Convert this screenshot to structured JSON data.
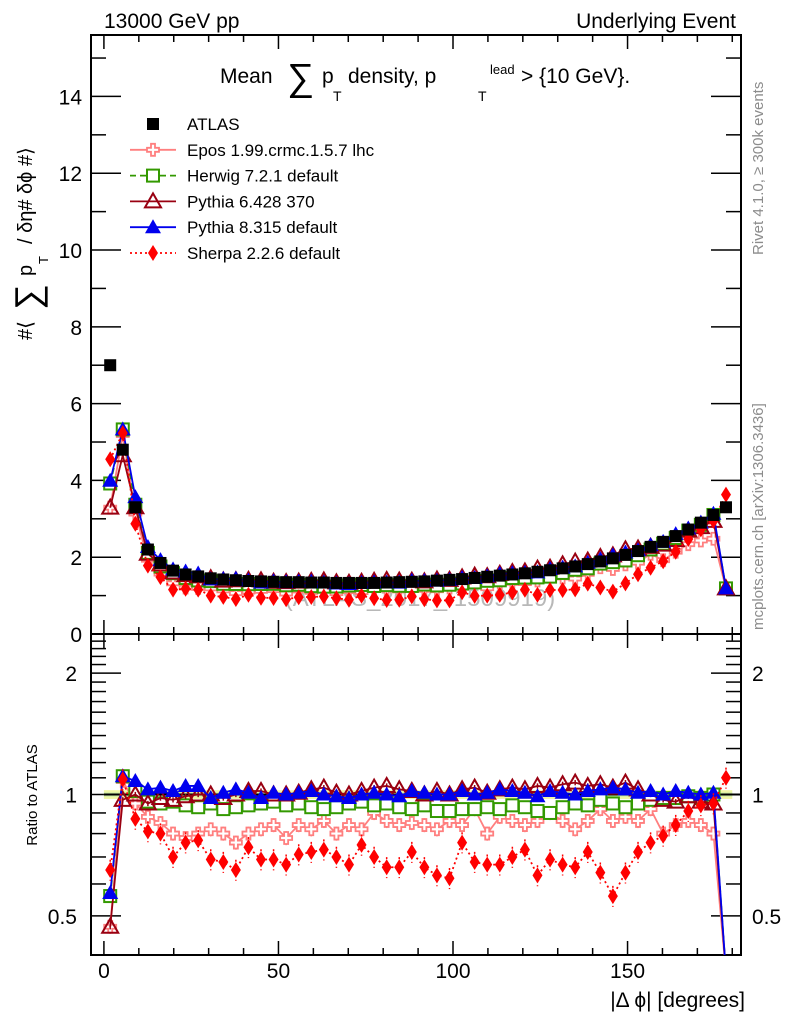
{
  "chart_data": {
    "type": "scatter",
    "header_left": "13000 GeV pp",
    "header_right": "Underlying Event",
    "title": {
      "prefix": "Mean",
      "sum_symbol": "∑",
      "p": "p",
      "sub_T": "T",
      "middle": "density, p",
      "sup_lead": "lead",
      "suffix": "> {10 GeV}."
    },
    "ylabel": {
      "prefix": "#⟨",
      "sum_symbol": "∑",
      "p": "p",
      "sub_T": "T",
      "suffix": "/ δη# δϕ #⟩"
    },
    "ratio_ylabel": "Ratio to ATLAS",
    "xlabel": "|Δ ϕ| [degrees]",
    "side_text_top": "Rivet 4.1.0, ≥ 300k events",
    "side_text_bottom": "mcplots.cern.ch [arXiv:1306.3436]",
    "watermark": "(ATLAS_2017_I1509919)",
    "xlim": [
      -3.7,
      182.5
    ],
    "ylim_main": [
      0,
      15.6
    ],
    "ylim_ratio": [
      0.4,
      2.5
    ],
    "ratio_scale": "log",
    "x_ticks": [
      0,
      50,
      100,
      150
    ],
    "y_ticks_main": [
      0,
      2,
      4,
      6,
      8,
      10,
      12,
      14
    ],
    "y_ticks_ratio": [
      0.5,
      1,
      2
    ],
    "legend_position": "top-left",
    "x": [
      1.8,
      5.4,
      9,
      12.6,
      16.2,
      19.8,
      23.4,
      27,
      30.6,
      34.2,
      37.8,
      41.4,
      45,
      48.6,
      52.2,
      55.8,
      59.4,
      63,
      66.6,
      70.2,
      73.8,
      77.4,
      81,
      84.6,
      88.2,
      91.8,
      95.4,
      99,
      102.6,
      106.2,
      109.8,
      113.4,
      117,
      120.6,
      124.2,
      127.8,
      131.4,
      135,
      138.6,
      142.2,
      145.8,
      149.4,
      153,
      156.6,
      160.2,
      163.8,
      167.4,
      171,
      174.6,
      178.2
    ],
    "reference": {
      "name": "ATLAS",
      "color": "#000000",
      "marker": "square",
      "values": [
        7.0,
        4.8,
        3.3,
        2.2,
        1.85,
        1.65,
        1.55,
        1.5,
        1.45,
        1.42,
        1.4,
        1.38,
        1.37,
        1.36,
        1.35,
        1.35,
        1.34,
        1.34,
        1.33,
        1.33,
        1.33,
        1.33,
        1.34,
        1.35,
        1.36,
        1.37,
        1.39,
        1.41,
        1.43,
        1.46,
        1.49,
        1.52,
        1.55,
        1.58,
        1.62,
        1.66,
        1.71,
        1.76,
        1.82,
        1.89,
        1.97,
        2.06,
        2.16,
        2.27,
        2.4,
        2.55,
        2.72,
        2.9,
        3.1,
        3.3
      ]
    },
    "series": [
      {
        "name": "Epos 1.99.crmc.1.5.7 lhc",
        "color": "#ff7f7f",
        "marker": "cross-box",
        "line": "solid",
        "ratio": [
          0.47,
          1.08,
          0.95,
          0.88,
          0.85,
          0.8,
          0.78,
          0.8,
          0.82,
          0.8,
          0.76,
          0.8,
          0.82,
          0.84,
          0.78,
          0.84,
          0.82,
          0.86,
          0.8,
          0.84,
          0.82,
          0.9,
          0.86,
          0.84,
          0.85,
          0.84,
          0.82,
          0.86,
          0.84,
          0.92,
          0.8,
          0.88,
          0.86,
          0.84,
          0.86,
          0.9,
          0.86,
          0.82,
          0.86,
          0.92,
          0.86,
          0.88,
          0.86,
          0.92,
          0.8,
          0.84,
          0.86,
          0.84,
          0.8,
          0.36
        ]
      },
      {
        "name": "Herwig 7.2.1 default",
        "color": "#339900",
        "marker": "open-square",
        "line": "dashed",
        "ratio": [
          0.56,
          1.11,
          1.02,
          0.96,
          0.95,
          0.96,
          0.94,
          0.93,
          0.95,
          0.92,
          0.93,
          0.94,
          0.95,
          0.96,
          0.94,
          0.95,
          0.93,
          0.92,
          0.93,
          0.95,
          0.96,
          0.94,
          0.95,
          0.93,
          0.92,
          0.94,
          0.91,
          0.91,
          0.92,
          0.92,
          0.93,
          0.92,
          0.94,
          0.93,
          0.91,
          0.9,
          0.93,
          0.95,
          0.94,
          0.97,
          0.95,
          0.93,
          0.95,
          0.97,
          0.98,
          0.98,
          0.99,
          0.98,
          1.0,
          0.36
        ]
      },
      {
        "name": "Pythia 6.428 370",
        "color": "#990011",
        "marker": "open-triangle",
        "line": "solid",
        "ratio": [
          0.47,
          0.97,
          1.0,
          0.95,
          0.98,
          0.97,
          0.99,
          1.0,
          1.0,
          0.98,
          1.0,
          1.02,
          1.02,
          1.0,
          1.0,
          1.01,
          1.03,
          1.04,
          1.01,
          1.0,
          1.02,
          1.04,
          1.05,
          1.03,
          1.02,
          1.0,
          1.02,
          1.0,
          1.03,
          1.04,
          1.01,
          1.03,
          1.04,
          1.03,
          1.05,
          1.04,
          1.06,
          1.07,
          1.05,
          1.06,
          1.04,
          1.07,
          1.03,
          1.0,
          0.97,
          0.96,
          0.99,
          0.96,
          0.95,
          0.36
        ]
      },
      {
        "name": "Pythia 8.315 default",
        "color": "#0000ee",
        "marker": "filled-triangle",
        "line": "solid",
        "ratio": [
          0.57,
          1.11,
          1.08,
          1.03,
          1.04,
          1.02,
          1.05,
          1.05,
          0.98,
          1.01,
          1.03,
          1.01,
          0.98,
          1.01,
          1.0,
          1.01,
          1.02,
          1.0,
          0.99,
          0.98,
          1.0,
          1.01,
          1.0,
          0.99,
          1.02,
          1.01,
          1.0,
          1.0,
          1.02,
          1.0,
          1.01,
          1.03,
          1.02,
          1.01,
          0.99,
          1.02,
          1.01,
          1.0,
          1.02,
          1.03,
          1.04,
          1.03,
          1.01,
          1.02,
          1.0,
          1.02,
          1.01,
          1.0,
          1.01,
          0.36
        ]
      },
      {
        "name": "Sherpa 2.2.6 default",
        "color": "#ff0000",
        "marker": "filled-diamond",
        "line": "dotted",
        "ratio": [
          0.65,
          1.09,
          0.87,
          0.81,
          0.8,
          0.7,
          0.76,
          0.77,
          0.69,
          0.68,
          0.65,
          0.74,
          0.69,
          0.69,
          0.67,
          0.71,
          0.72,
          0.73,
          0.7,
          0.67,
          0.75,
          0.7,
          0.66,
          0.66,
          0.72,
          0.66,
          0.63,
          0.62,
          0.76,
          0.68,
          0.67,
          0.67,
          0.7,
          0.73,
          0.63,
          0.69,
          0.67,
          0.66,
          0.72,
          0.64,
          0.56,
          0.64,
          0.72,
          0.76,
          0.79,
          0.84,
          0.91,
          0.94,
          0.95,
          1.1
        ]
      }
    ]
  }
}
